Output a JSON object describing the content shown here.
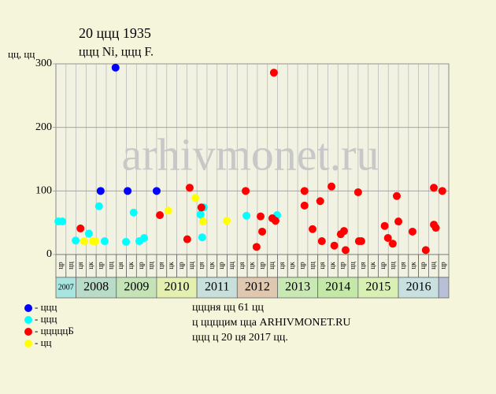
{
  "chart_data": {
    "type": "scatter",
    "title": "20 ццц 1935",
    "subtitle": "ццц Ni, ццц F.",
    "y_label": "цц, цц",
    "watermark": "arhivmonet.ru",
    "xlim": [
      2007.5,
      2017.25
    ],
    "ylim": [
      0,
      300
    ],
    "yticks": [
      0,
      100,
      200,
      300
    ],
    "grid": true,
    "column_labels": [
      "цр",
      "цц",
      "ця",
      "цк",
      "цр",
      "цц",
      "ця",
      "цк",
      "цр",
      "цц",
      "ця",
      "цк",
      "цр",
      "цц",
      "ця",
      "цк",
      "цр",
      "цц",
      "ця",
      "цк",
      "цр",
      "цц",
      "ця",
      "цк",
      "цр",
      "цц",
      "ця",
      "цк",
      "цр",
      "цц",
      "ця",
      "цк",
      "цр",
      "цц",
      "ця",
      "цк",
      "цр",
      "цц",
      "цр"
    ],
    "years": [
      {
        "label": "2007",
        "color": "#a8e4e0"
      },
      {
        "label": "2008",
        "color": "#b8dcc8"
      },
      {
        "label": "2009",
        "color": "#c4e4b8"
      },
      {
        "label": "2010",
        "color": "#e4f0b0"
      },
      {
        "label": "2011",
        "color": "#c8e0dc"
      },
      {
        "label": "2012",
        "color": "#e0c8b0"
      },
      {
        "label": "2013",
        "color": "#c8e8b4"
      },
      {
        "label": "2014",
        "color": "#c4e8a8"
      },
      {
        "label": "2015",
        "color": "#d8f0b4"
      },
      {
        "label": "2016",
        "color": "#c8e0e0"
      }
    ],
    "series": [
      {
        "name": "- ццц",
        "color": "#0000ff",
        "x": [
          2008.98,
          2008.61,
          2009.28,
          2010.0
        ],
        "values": [
          294,
          100,
          100,
          100
        ]
      },
      {
        "name": "- ццц",
        "color": "#00ffff",
        "x": [
          2007.56,
          2007.66,
          2007.99,
          2008.32,
          2008.57,
          2008.71,
          2009.24,
          2009.43,
          2009.57,
          2009.69,
          2011.17,
          2011.09,
          2011.13,
          2012.23,
          2012.99
        ],
        "values": [
          52,
          52,
          22,
          33,
          76,
          21,
          20,
          66,
          21,
          26,
          74,
          63,
          27,
          61,
          62
        ]
      },
      {
        "name": "- цццццБ",
        "color": "#ff0000",
        "x": [
          2008.11,
          2010.08,
          2010.76,
          2010.82,
          2011.11,
          2012.21,
          2012.48,
          2012.58,
          2012.62,
          2012.87,
          2012.95,
          2012.91,
          2013.67,
          2013.67,
          2013.87,
          2014.06,
          2014.1,
          2014.34,
          2014.41,
          2014.57,
          2014.65,
          2014.69,
          2015.0,
          2015.02,
          2015.08,
          2015.66,
          2015.74,
          2015.86,
          2015.96,
          2016.0,
          2016.35,
          2016.68,
          2016.88,
          2016.88,
          2016.93,
          2017.09
        ],
        "values": [
          41,
          62,
          24,
          105,
          74,
          100,
          12,
          60,
          36,
          57,
          53,
          286,
          100,
          77,
          40,
          84,
          21,
          107,
          14,
          32,
          37,
          7,
          98,
          21,
          21,
          45,
          26,
          17,
          92,
          52,
          36,
          7,
          105,
          47,
          42,
          100
        ]
      },
      {
        "name": "- цц",
        "color": "#ffff00",
        "x": [
          2008.2,
          2008.42,
          2008.48,
          2010.29,
          2010.96,
          2011.15,
          2011.74
        ],
        "values": [
          21,
          21,
          21,
          69,
          89,
          52,
          53
        ]
      }
    ],
    "notes": [
      "цццня цц 61 цц",
      "ц ццццим цца ARHIVMONET.RU",
      "ццц ц 20 ця 2017 цц."
    ]
  }
}
